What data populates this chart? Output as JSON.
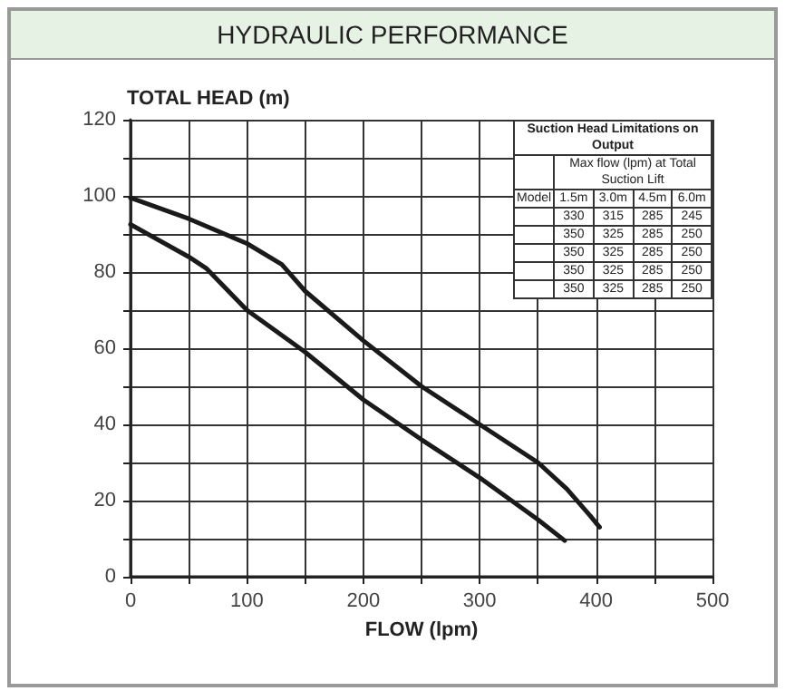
{
  "chart_data": {
    "type": "line",
    "title": "HYDRAULIC PERFORMANCE",
    "xlabel": "FLOW (lpm)",
    "ylabel": "TOTAL HEAD (m)",
    "xlim": [
      0,
      500
    ],
    "ylim": [
      0,
      120
    ],
    "xticks": [
      0,
      {
        "value": 50,
        "label": null
      },
      100,
      {
        "value": 150,
        "label": null
      },
      200,
      {
        "value": 250,
        "label": null
      },
      300,
      {
        "value": 350,
        "label": null
      },
      400,
      {
        "value": 450,
        "label": null
      },
      500
    ],
    "yticks": [
      0,
      {
        "value": 10,
        "label": null
      },
      20,
      {
        "value": 30,
        "label": null
      },
      40,
      {
        "value": 50,
        "label": null
      },
      60,
      {
        "value": 70,
        "label": null
      },
      80,
      {
        "value": 90,
        "label": null
      },
      100,
      {
        "value": 110,
        "label": null
      },
      120
    ],
    "grid": true,
    "marker": "none",
    "line_style": "solid",
    "series": [
      {
        "color": "#1a1a1a",
        "x": [
          0,
          50,
          100,
          130,
          150,
          200,
          250,
          300,
          350,
          375,
          395,
          403
        ],
        "values": [
          99.5,
          94,
          87.5,
          82,
          75,
          62,
          50,
          40,
          30,
          23,
          16,
          13
        ]
      },
      {
        "color": "#1a1a1a",
        "x": [
          0,
          50,
          65,
          100,
          150,
          200,
          250,
          300,
          350,
          373
        ],
        "values": [
          92.5,
          84,
          81,
          70,
          59,
          46.5,
          36,
          26,
          15,
          9.5
        ]
      }
    ],
    "annotations": [
      "Suction Head Limitations on Output",
      "Max flow (lpm) at Total Suction Lift",
      "Model",
      "1.5m",
      "3.0m",
      "4.5m",
      "6.0m",
      "330",
      "315",
      "285",
      "245",
      "350",
      "325",
      "285",
      "250",
      "350",
      "325",
      "285",
      "250",
      "350",
      "325",
      "285",
      "250",
      "350",
      "325",
      "285",
      "250"
    ]
  }
}
